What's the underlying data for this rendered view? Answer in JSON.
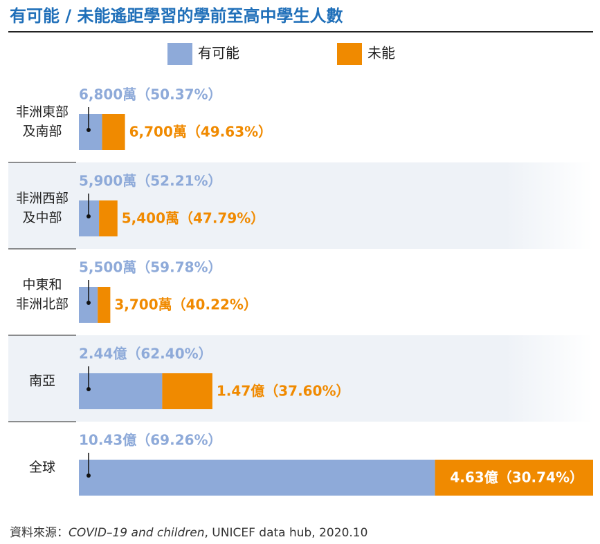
{
  "chart_data": {
    "type": "stacked-bar-horizontal",
    "title": "有可能 / 未能遙距學習的學前至高中學生人數",
    "categories": [
      "非洲東部\n及南部",
      "非洲西部\n及中部",
      "中東和\n非洲北部",
      "南亞",
      "全球"
    ],
    "series": [
      {
        "name": "有可能",
        "color": "#8eaad9",
        "values": [
          68000000,
          59000000,
          55000000,
          244000000,
          1043000000
        ],
        "value_labels": [
          "6,800萬（50.37%）",
          "5,900萬（52.21%）",
          "5,500萬（59.78%）",
          "2.44億（62.40%）",
          "10.43億（69.26%）"
        ]
      },
      {
        "name": "未能",
        "color": "#f08a00",
        "values": [
          67000000,
          54000000,
          37000000,
          147000000,
          463000000
        ],
        "value_labels": [
          "6,700萬（49.63%）",
          "5,400萬（47.79%）",
          "3,700萬（40.22%）",
          "1.47億（37.60%）",
          "4.63億（30.74%）"
        ]
      }
    ],
    "source_prefix": "資料來源：",
    "source_title": "COVID–19 and children",
    "source_rest": ", UNICEF data hub, 2020.10"
  }
}
